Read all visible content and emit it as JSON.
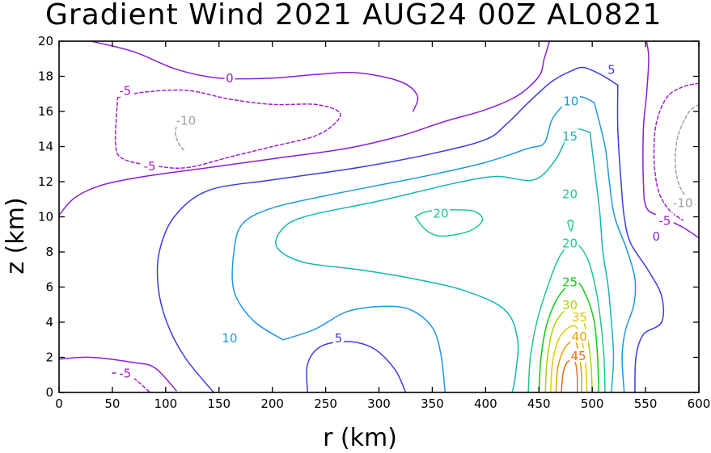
{
  "chart_data": {
    "type": "contour",
    "title": "Gradient Wind 2021 AUG24 00Z  AL0821",
    "xlabel": "r (km)",
    "ylabel": "z (km)",
    "xlim": [
      0,
      600
    ],
    "ylim": [
      0,
      20
    ],
    "xticks": [
      0,
      50,
      100,
      150,
      200,
      250,
      300,
      350,
      400,
      450,
      500,
      550,
      600
    ],
    "yticks": [
      0,
      2,
      4,
      6,
      8,
      10,
      12,
      14,
      16,
      18,
      20
    ],
    "colors": {
      "-10": "#a0a0a0",
      "-5": "#a020c8",
      "0": "#8c1ed2",
      "5": "#3c3cdc",
      "10": "#1e96e6",
      "15": "#16b4b4",
      "20": "#1ec88c",
      "25": "#14c814",
      "30": "#aad200",
      "35": "#e6c800",
      "40": "#e6a000",
      "45": "#e66e14"
    },
    "contours": [
      {
        "level": 0,
        "dashed": false,
        "points": [
          [
            0,
            10.1
          ],
          [
            15,
            11.1
          ],
          [
            40,
            11.8
          ],
          [
            80,
            12.3
          ],
          [
            140,
            12.8
          ],
          [
            200,
            13.3
          ],
          [
            270,
            13.9
          ],
          [
            320,
            14.6
          ],
          [
            360,
            15.4
          ],
          [
            400,
            16.1
          ],
          [
            430,
            16.9
          ],
          [
            450,
            18.0
          ],
          [
            455,
            19.0
          ],
          [
            460,
            20.0
          ]
        ]
      },
      {
        "level": 0,
        "dashed": false,
        "points": [
          [
            30,
            20
          ],
          [
            70,
            19.4
          ],
          [
            110,
            18.4
          ],
          [
            150,
            17.9
          ],
          [
            200,
            17.9
          ],
          [
            240,
            18.1
          ],
          [
            280,
            18.2
          ],
          [
            320,
            17.7
          ],
          [
            336,
            16.9
          ],
          [
            332,
            16.0
          ]
        ]
      },
      {
        "level": 0,
        "dashed": false,
        "points": [
          [
            0,
            1.9
          ],
          [
            30,
            2.0
          ],
          [
            70,
            1.7
          ],
          [
            90,
            1.4
          ],
          [
            110,
            0.1
          ]
        ]
      },
      {
        "level": 0,
        "dashed": false,
        "points": [
          [
            551,
            20
          ],
          [
            553,
            19
          ],
          [
            551,
            17
          ],
          [
            548,
            15
          ],
          [
            548,
            12
          ],
          [
            551,
            10.5
          ],
          [
            565,
            10.0
          ],
          [
            585,
            9.4
          ],
          [
            600,
            8.8
          ]
        ]
      },
      {
        "level": -5,
        "dashed": true,
        "points": [
          [
            55,
            16.8
          ],
          [
            80,
            17.1
          ],
          [
            120,
            17.2
          ],
          [
            160,
            16.7
          ],
          [
            200,
            16.4
          ],
          [
            240,
            16.4
          ],
          [
            262,
            16.0
          ],
          [
            260,
            15.4
          ],
          [
            240,
            14.6
          ],
          [
            200,
            14.0
          ],
          [
            160,
            13.4
          ],
          [
            120,
            12.8
          ],
          [
            90,
            12.9
          ],
          [
            60,
            13.3
          ],
          [
            53,
            14.2
          ],
          [
            55,
            16.8
          ]
        ]
      },
      {
        "level": -5,
        "dashed": true,
        "points": [
          [
            50,
            1.1
          ],
          [
            58,
            1.1
          ],
          [
            70,
            0.8
          ],
          [
            80,
            0.3
          ],
          [
            85,
            0.0
          ]
        ]
      },
      {
        "level": -5,
        "dashed": true,
        "points": [
          [
            600,
            17.6
          ],
          [
            585,
            17.4
          ],
          [
            570,
            16.8
          ],
          [
            560,
            15.3
          ],
          [
            558,
            13.3
          ],
          [
            562,
            11.5
          ],
          [
            572,
            10.4
          ],
          [
            585,
            9.8
          ]
        ]
      },
      {
        "level": -10,
        "dashed": true,
        "points": [
          [
            117,
            13.8
          ],
          [
            112,
            14.2
          ],
          [
            109,
            14.8
          ],
          [
            112,
            15.4
          ],
          [
            117,
            15.8
          ]
        ]
      },
      {
        "level": -10,
        "dashed": true,
        "points": [
          [
            600,
            16.4
          ],
          [
            590,
            15.9
          ],
          [
            580,
            14.5
          ],
          [
            578,
            12.8
          ],
          [
            584,
            11.5
          ],
          [
            597,
            10.7
          ]
        ]
      },
      {
        "level": 5,
        "dashed": false,
        "points": [
          [
            145,
            0
          ],
          [
            118,
            2
          ],
          [
            101,
            4
          ],
          [
            93,
            6
          ],
          [
            94,
            8
          ],
          [
            108,
            10
          ],
          [
            140,
            11.5
          ],
          [
            200,
            12.1
          ],
          [
            280,
            12.8
          ],
          [
            350,
            13.6
          ],
          [
            400,
            14.4
          ],
          [
            420,
            15.3
          ],
          [
            440,
            16.5
          ],
          [
            462,
            17.7
          ],
          [
            480,
            18.3
          ],
          [
            492,
            18.5
          ],
          [
            508,
            18.1
          ],
          [
            524,
            17.5
          ]
        ]
      },
      {
        "level": 5,
        "dashed": false,
        "points": [
          [
            233,
            0
          ],
          [
            233,
            1.6
          ],
          [
            245,
            2.6
          ],
          [
            270,
            2.9
          ],
          [
            295,
            2.5
          ],
          [
            315,
            1.3
          ],
          [
            325,
            0
          ]
        ]
      },
      {
        "level": 5,
        "dashed": false,
        "points": [
          [
            524,
            17.5
          ],
          [
            524,
            15
          ],
          [
            527,
            12
          ],
          [
            530,
            10
          ],
          [
            536,
            8.5
          ],
          [
            552,
            7.0
          ],
          [
            565,
            5.5
          ],
          [
            565,
            4
          ],
          [
            548,
            3.3
          ],
          [
            541,
            2.0
          ],
          [
            540,
            0
          ]
        ]
      },
      {
        "level": 10,
        "dashed": false,
        "points": [
          [
            210,
            3.0
          ],
          [
            182,
            4.1
          ],
          [
            164,
            5.8
          ],
          [
            164,
            8.0
          ],
          [
            172,
            9.6
          ],
          [
            200,
            10.5
          ],
          [
            250,
            11.2
          ],
          [
            300,
            11.8
          ],
          [
            350,
            12.4
          ],
          [
            400,
            13.1
          ],
          [
            440,
            13.9
          ],
          [
            455,
            14.2
          ],
          [
            462,
            15.5
          ],
          [
            472,
            16.3
          ],
          [
            483,
            16.8
          ],
          [
            492,
            16.8
          ],
          [
            502,
            16.5
          ]
        ]
      },
      {
        "level": 10,
        "dashed": false,
        "points": [
          [
            502,
            16.5
          ],
          [
            512,
            14
          ],
          [
            516,
            12
          ],
          [
            521,
            10
          ],
          [
            532,
            8.2
          ],
          [
            540,
            6.5
          ],
          [
            539,
            5
          ],
          [
            531,
            3.5
          ],
          [
            528,
            2
          ],
          [
            530,
            0
          ]
        ]
      },
      {
        "level": 10,
        "dashed": false,
        "points": [
          [
            210,
            3.0
          ],
          [
            240,
            3.6
          ],
          [
            270,
            4.6
          ],
          [
            305,
            4.9
          ],
          [
            330,
            4.7
          ],
          [
            350,
            3.7
          ],
          [
            358,
            2.2
          ],
          [
            362,
            0
          ]
        ]
      },
      {
        "level": 15,
        "dashed": false,
        "points": [
          [
            425,
            0
          ],
          [
            428,
            1
          ],
          [
            430,
            3
          ],
          [
            418,
            4.7
          ],
          [
            380,
            5.8
          ],
          [
            330,
            6.5
          ],
          [
            280,
            7.0
          ],
          [
            230,
            7.4
          ],
          [
            205,
            8.2
          ],
          [
            208,
            9.2
          ],
          [
            230,
            10.0
          ],
          [
            300,
            10.9
          ],
          [
            370,
            11.9
          ],
          [
            410,
            12.3
          ],
          [
            445,
            12.1
          ],
          [
            465,
            13.2
          ],
          [
            477,
            14.6
          ],
          [
            486,
            15.0
          ],
          [
            498,
            14.8
          ]
        ]
      },
      {
        "level": 15,
        "dashed": false,
        "points": [
          [
            498,
            14.8
          ],
          [
            502,
            12.8
          ],
          [
            507,
            10.3
          ],
          [
            510,
            8.0
          ],
          [
            515,
            6.0
          ],
          [
            518,
            4.0
          ],
          [
            520,
            2.0
          ],
          [
            518,
            0
          ]
        ]
      },
      {
        "level": 20,
        "dashed": false,
        "points": [
          [
            334,
            10.0
          ],
          [
            345,
            10.3
          ],
          [
            370,
            10.4
          ],
          [
            390,
            10.3
          ],
          [
            397,
            9.8
          ],
          [
            385,
            9.2
          ],
          [
            360,
            8.9
          ],
          [
            345,
            9.2
          ],
          [
            334,
            10.0
          ]
        ]
      },
      {
        "level": 20,
        "dashed": false,
        "points": [
          [
            477,
            9.7
          ],
          [
            479,
            9.8
          ],
          [
            482,
            9.7
          ],
          [
            480,
            9.2
          ],
          [
            477,
            9.7
          ]
        ]
      },
      {
        "level": 20,
        "dashed": false,
        "points": [
          [
            440,
            0
          ],
          [
            442,
            2
          ],
          [
            448,
            4
          ],
          [
            458,
            6
          ],
          [
            470,
            7.8
          ],
          [
            483,
            8.5
          ],
          [
            495,
            7.7
          ],
          [
            503,
            6.0
          ],
          [
            508,
            4.0
          ],
          [
            511,
            2.0
          ],
          [
            512,
            0
          ]
        ]
      },
      {
        "level": 25,
        "dashed": false,
        "points": [
          [
            450,
            0
          ],
          [
            452,
            2
          ],
          [
            458,
            4
          ],
          [
            470,
            5.6
          ],
          [
            485,
            6.3
          ],
          [
            495,
            5.4
          ],
          [
            502,
            4
          ],
          [
            505,
            2
          ],
          [
            506,
            0
          ]
        ]
      },
      {
        "level": 30,
        "dashed": false,
        "points": [
          [
            456,
            0
          ],
          [
            458,
            2
          ],
          [
            465,
            3.9
          ],
          [
            480,
            4.9
          ],
          [
            490,
            4.4
          ],
          [
            496,
            3
          ],
          [
            499,
            1.5
          ],
          [
            500,
            0
          ]
        ]
      },
      {
        "level": 35,
        "dashed": false,
        "points": [
          [
            461,
            0
          ],
          [
            463,
            1.8
          ],
          [
            470,
            3.2
          ],
          [
            483,
            3.8
          ],
          [
            490,
            3.0
          ],
          [
            494,
            1.5
          ],
          [
            495,
            0
          ]
        ]
      },
      {
        "level": 40,
        "dashed": false,
        "points": [
          [
            466,
            0
          ],
          [
            468,
            1.5
          ],
          [
            475,
            2.6
          ],
          [
            484,
            2.9
          ],
          [
            488,
            2.0
          ],
          [
            490,
            1.0
          ],
          [
            490,
            0
          ]
        ]
      },
      {
        "level": 45,
        "dashed": false,
        "points": [
          [
            471,
            0
          ],
          [
            473,
            1.2
          ],
          [
            478,
            1.8
          ],
          [
            484,
            1.7
          ],
          [
            486,
            0.9
          ],
          [
            486,
            0
          ]
        ]
      }
    ],
    "labels": [
      {
        "text": "0",
        "x": 160,
        "y": 17.9,
        "level": 0
      },
      {
        "text": "-5",
        "x": 62,
        "y": 17.2,
        "level": -5
      },
      {
        "text": "-5",
        "x": 85,
        "y": 12.9,
        "level": -5
      },
      {
        "text": "-5",
        "x": 62,
        "y": 1.1,
        "level": -5
      },
      {
        "text": "-10",
        "x": 119,
        "y": 15.5,
        "level": -10
      },
      {
        "text": "-10",
        "x": 585,
        "y": 10.8,
        "level": -10
      },
      {
        "text": "-5",
        "x": 568,
        "y": 9.8,
        "level": -5
      },
      {
        "text": "0",
        "x": 560,
        "y": 8.9,
        "level": 0
      },
      {
        "text": "5",
        "x": 518,
        "y": 18.4,
        "level": 5
      },
      {
        "text": "5",
        "x": 262,
        "y": 3.1,
        "level": 5
      },
      {
        "text": "10",
        "x": 480,
        "y": 16.6,
        "level": 10
      },
      {
        "text": "10",
        "x": 160,
        "y": 3.1,
        "level": 10
      },
      {
        "text": "15",
        "x": 479,
        "y": 14.6,
        "level": 15
      },
      {
        "text": "20",
        "x": 358,
        "y": 10.2,
        "level": 20
      },
      {
        "text": "20",
        "x": 479,
        "y": 11.3,
        "level": 20
      },
      {
        "text": "20",
        "x": 479,
        "y": 8.5,
        "level": 20
      },
      {
        "text": "25",
        "x": 479,
        "y": 6.3,
        "level": 25
      },
      {
        "text": "30",
        "x": 479,
        "y": 5.0,
        "level": 30
      },
      {
        "text": "35",
        "x": 488,
        "y": 4.3,
        "level": 35
      },
      {
        "text": "40",
        "x": 488,
        "y": 3.2,
        "level": 40
      },
      {
        "text": "45",
        "x": 487,
        "y": 2.1,
        "level": 45
      }
    ]
  }
}
